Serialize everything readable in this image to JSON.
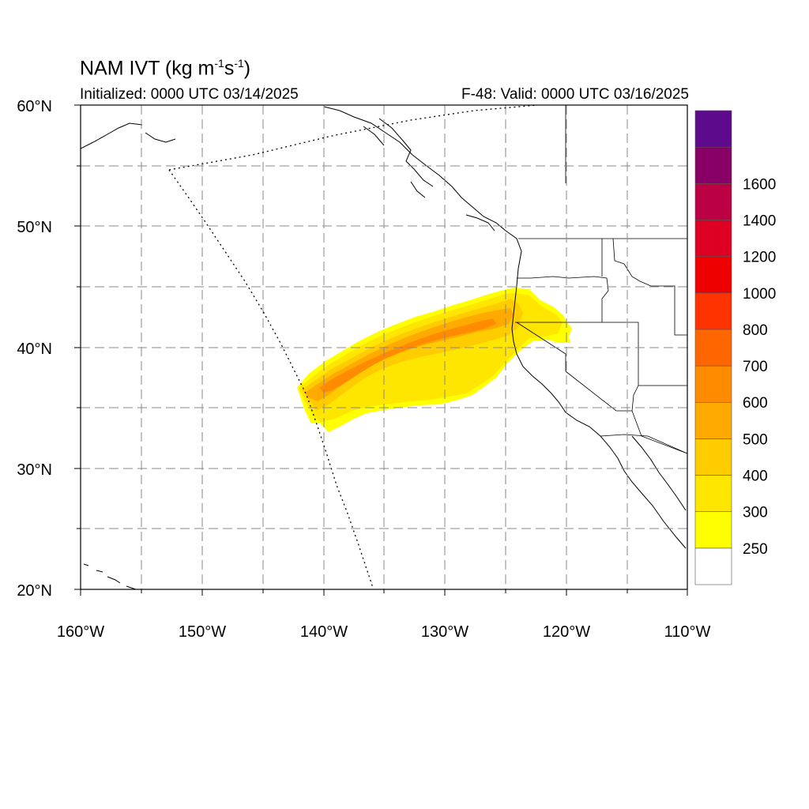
{
  "title": {
    "main": "NAM IVT (kg m",
    "exp1": "-1",
    "mid": "s",
    "exp2": "-1",
    "end": ")"
  },
  "init_label": "Initialized: 0000 UTC 03/14/2025",
  "valid_label": "F-48: Valid: 0000 UTC 03/16/2025",
  "lat_labels": [
    "60°N",
    "50°N",
    "40°N",
    "30°N",
    "20°N"
  ],
  "lon_labels": [
    "160°W",
    "150°W",
    "140°W",
    "130°W",
    "120°W",
    "110°W"
  ],
  "lat_values": [
    60,
    50,
    40,
    30,
    20
  ],
  "lon_values": [
    -160,
    -150,
    -140,
    -130,
    -120,
    -110
  ],
  "colorbar": {
    "labels": [
      "250",
      "300",
      "400",
      "500",
      "600",
      "700",
      "800",
      "1000",
      "1200",
      "1400",
      "1600"
    ],
    "colors": [
      "#ffffff",
      "#ffff00",
      "#ffe600",
      "#ffcc00",
      "#ffaa00",
      "#ff8c00",
      "#ff6600",
      "#ff3300",
      "#ee0000",
      "#dd0022",
      "#bb0044",
      "#880066",
      "#5e0a8c"
    ]
  },
  "colors": {
    "ivt_250": "#ffff00",
    "ivt_300": "#ffe600",
    "ivt_400": "#ffcc00",
    "ivt_500": "#ffaa00",
    "ivt_600": "#ff8c00",
    "coast": "#000000",
    "grid": "#888888"
  },
  "map": {
    "lon_range": [
      -160,
      -110
    ],
    "lat_range": [
      20,
      60
    ],
    "grid_interval_deg": 5,
    "label_interval_deg": 10,
    "field": "Integrated Vapor Transport"
  }
}
